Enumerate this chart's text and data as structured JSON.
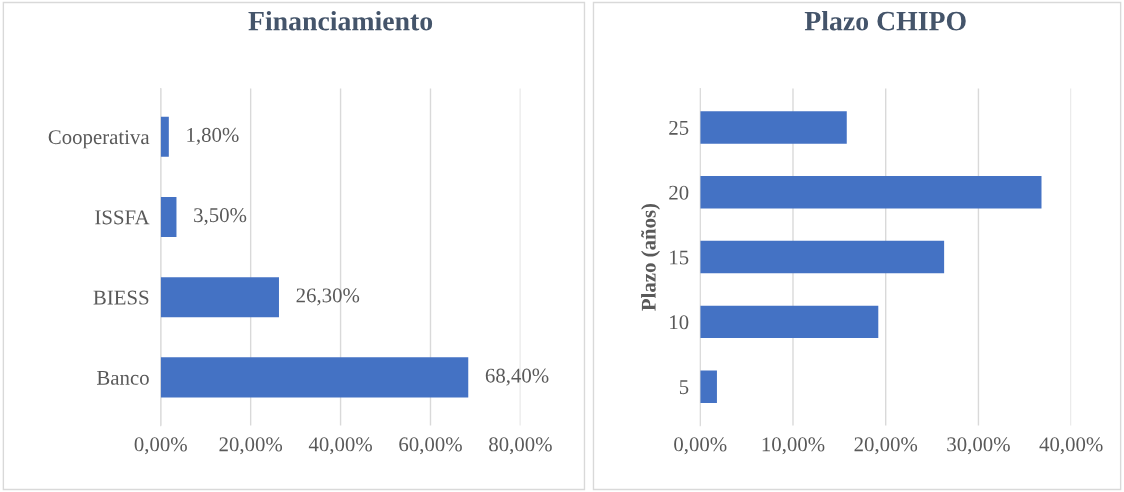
{
  "chart_data": [
    {
      "type": "bar",
      "orientation": "horizontal",
      "title": "Financiamiento",
      "categories": [
        "Cooperativa",
        "ISSFA",
        "BIESS",
        "Banco"
      ],
      "values": [
        1.8,
        3.5,
        26.3,
        68.4
      ],
      "value_labels": [
        "1,80%",
        "3,50%",
        "26,30%",
        "68,40%"
      ],
      "color": "#4472c4",
      "xlim": [
        0,
        80
      ],
      "xticks": [
        {
          "value": 0,
          "label": "0,00%"
        },
        {
          "value": 20,
          "label": "20,00%"
        },
        {
          "value": 40,
          "label": "40,00%"
        },
        {
          "value": 60,
          "label": "60,00%"
        },
        {
          "value": 80,
          "label": "80,00%"
        }
      ],
      "grid": "x",
      "legend": false
    },
    {
      "type": "bar",
      "orientation": "horizontal",
      "title": "Plazo CHIPO",
      "ylabel": "Plazo (años)",
      "categories": [
        "25",
        "20",
        "15",
        "10",
        "5"
      ],
      "values": [
        15.8,
        36.8,
        26.3,
        19.2,
        1.8
      ],
      "color": "#4472c4",
      "xlim": [
        0,
        40
      ],
      "xticks": [
        {
          "value": 0,
          "label": "0,00%"
        },
        {
          "value": 10,
          "label": "10,00%"
        },
        {
          "value": 20,
          "label": "20,00%"
        },
        {
          "value": 30,
          "label": "30,00%"
        },
        {
          "value": 40,
          "label": "40,00%"
        }
      ],
      "grid": "x",
      "legend": false
    }
  ]
}
